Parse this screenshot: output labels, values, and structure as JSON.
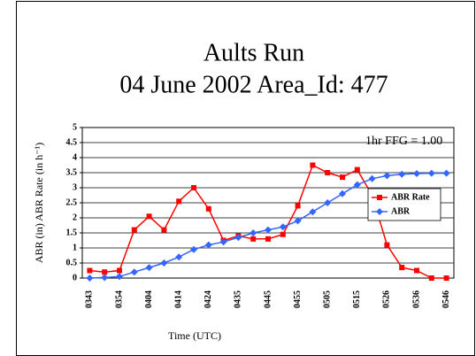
{
  "chart_data": {
    "type": "line",
    "title": "Aults Run",
    "subtitle": "04 June 2002   Area_Id: 477",
    "annotation": "1hr FFG = 1.00",
    "x_label": "Time (UTC)",
    "y_label": "ABR (in) ABR Rate (in h⁻¹)",
    "categories": [
      "0343",
      null,
      "0354",
      null,
      "0404",
      null,
      "0414",
      null,
      "0424",
      null,
      "0435",
      null,
      "0445",
      null,
      "0455",
      null,
      "0505",
      null,
      "0515",
      null,
      "0526",
      null,
      "0536",
      null,
      "0546"
    ],
    "series": [
      {
        "name": "ABR Rate",
        "color": "#ff0000",
        "marker": "square",
        "values": [
          0.25,
          0.2,
          0.25,
          1.6,
          2.05,
          1.6,
          2.55,
          3.0,
          2.3,
          1.25,
          1.4,
          1.3,
          1.3,
          1.45,
          2.4,
          3.75,
          3.5,
          3.35,
          3.6,
          2.75,
          1.1,
          0.35,
          0.25,
          0,
          0
        ]
      },
      {
        "name": "ABR",
        "color": "#3366ff",
        "marker": "diamond",
        "values": [
          0,
          0.02,
          0.05,
          0.2,
          0.35,
          0.5,
          0.7,
          0.95,
          1.1,
          1.2,
          1.35,
          1.5,
          1.6,
          1.7,
          1.9,
          2.2,
          2.5,
          2.8,
          3.1,
          3.3,
          3.4,
          3.45,
          3.47,
          3.48,
          3.48
        ]
      }
    ],
    "ylim": [
      0,
      5
    ],
    "yticks": [
      0,
      0.5,
      1,
      1.5,
      2,
      2.5,
      3,
      3.5,
      4,
      4.5,
      5
    ],
    "grid": true,
    "legend": "right"
  }
}
